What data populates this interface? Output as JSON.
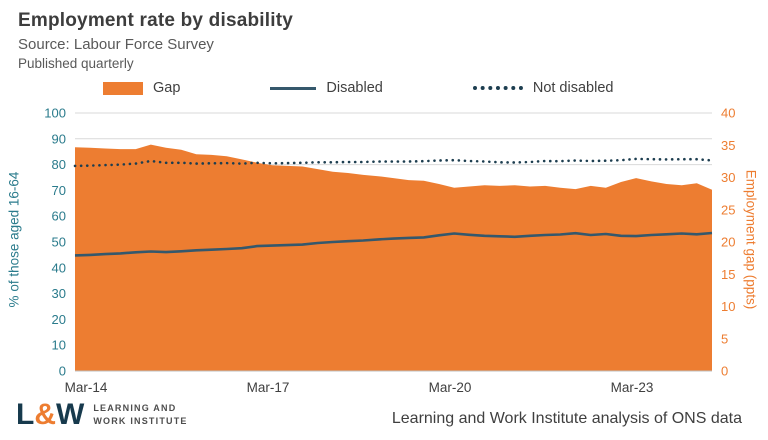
{
  "header": {
    "title": "Employment rate by disability",
    "source": "Source: Labour Force Survey",
    "published": "Published quarterly"
  },
  "legend": [
    {
      "label": "Gap",
      "type": "area",
      "color": "#ED7D31"
    },
    {
      "label": "Disabled",
      "type": "line",
      "color": "#35586C"
    },
    {
      "label": "Not disabled",
      "type": "dotted",
      "color": "#1D3E50"
    }
  ],
  "chart_data": {
    "type": "area",
    "title": "Employment rate by disability",
    "categories": [
      "Mar-14",
      "Jun-14",
      "Sep-14",
      "Dec-14",
      "Mar-15",
      "Jun-15",
      "Sep-15",
      "Dec-15",
      "Mar-16",
      "Jun-16",
      "Sep-16",
      "Dec-16",
      "Mar-17",
      "Jun-17",
      "Sep-17",
      "Dec-17",
      "Mar-18",
      "Jun-18",
      "Sep-18",
      "Dec-18",
      "Mar-19",
      "Jun-19",
      "Sep-19",
      "Dec-19",
      "Mar-20",
      "Jun-20",
      "Sep-20",
      "Dec-20",
      "Mar-21",
      "Jun-21",
      "Sep-21",
      "Dec-21",
      "Mar-22",
      "Jun-22",
      "Sep-22",
      "Dec-22",
      "Mar-23",
      "Jun-23",
      "Sep-23",
      "Dec-23",
      "Mar-24",
      "Jun-24",
      "Sep-24"
    ],
    "x_ticks": [
      "Mar-14",
      "Mar-17",
      "Mar-20",
      "Mar-23"
    ],
    "x_tick_indices": [
      0,
      12,
      24,
      36
    ],
    "series": [
      {
        "name": "Gap",
        "axis": "right",
        "type": "area",
        "color": "#ED7D31",
        "values": [
          34.7,
          34.6,
          34.5,
          34.4,
          34.4,
          35.1,
          34.6,
          34.3,
          33.6,
          33.5,
          33.3,
          32.8,
          32.3,
          31.9,
          31.8,
          31.7,
          31.3,
          30.9,
          30.7,
          30.4,
          30.2,
          29.9,
          29.6,
          29.5,
          29.0,
          28.4,
          28.6,
          28.8,
          28.7,
          28.8,
          28.6,
          28.7,
          28.4,
          28.2,
          28.7,
          28.4,
          29.3,
          29.9,
          29.4,
          29.0,
          28.8,
          29.1,
          28.1
        ]
      },
      {
        "name": "Disabled",
        "axis": "left",
        "type": "line",
        "color": "#35586C",
        "values": [
          44.8,
          45.0,
          45.3,
          45.6,
          46.0,
          46.3,
          46.1,
          46.4,
          46.8,
          47.0,
          47.3,
          47.6,
          48.4,
          48.6,
          48.8,
          49.0,
          49.6,
          50.0,
          50.3,
          50.6,
          51.0,
          51.3,
          51.6,
          51.8,
          52.6,
          53.3,
          52.8,
          52.4,
          52.2,
          52.0,
          52.4,
          52.7,
          52.9,
          53.4,
          52.7,
          53.1,
          52.4,
          52.3,
          52.7,
          53.0,
          53.3,
          53.0,
          53.5
        ]
      },
      {
        "name": "Not disabled",
        "axis": "left",
        "type": "dotted-line",
        "color": "#1D3E50",
        "values": [
          79.5,
          79.6,
          79.8,
          80.0,
          80.4,
          81.4,
          80.7,
          80.7,
          80.4,
          80.5,
          80.6,
          80.4,
          80.7,
          80.5,
          80.6,
          80.7,
          80.9,
          80.9,
          81.0,
          81.0,
          81.2,
          81.2,
          81.2,
          81.3,
          81.6,
          81.7,
          81.4,
          81.2,
          80.9,
          80.8,
          81.0,
          81.4,
          81.3,
          81.6,
          81.4,
          81.5,
          81.7,
          82.2,
          82.1,
          82.0,
          82.1,
          82.1,
          81.6
        ]
      }
    ],
    "left_axis": {
      "label": "% of those aged 16-64",
      "min": 0,
      "max": 100,
      "step": 10,
      "color": "#2A7B8C"
    },
    "right_axis": {
      "label": "Employment gap (ppts)",
      "min": 0,
      "max": 40,
      "step": 5,
      "color": "#ED7D31"
    },
    "grid": "horizontal",
    "legend_position": "top"
  },
  "footer": {
    "logo_l": "L",
    "logo_amp": "&",
    "logo_w": "W",
    "logo_line1": "LEARNING AND",
    "logo_line2": "WORK INSTITUTE",
    "credit": "Learning and Work Institute analysis of ONS data"
  }
}
